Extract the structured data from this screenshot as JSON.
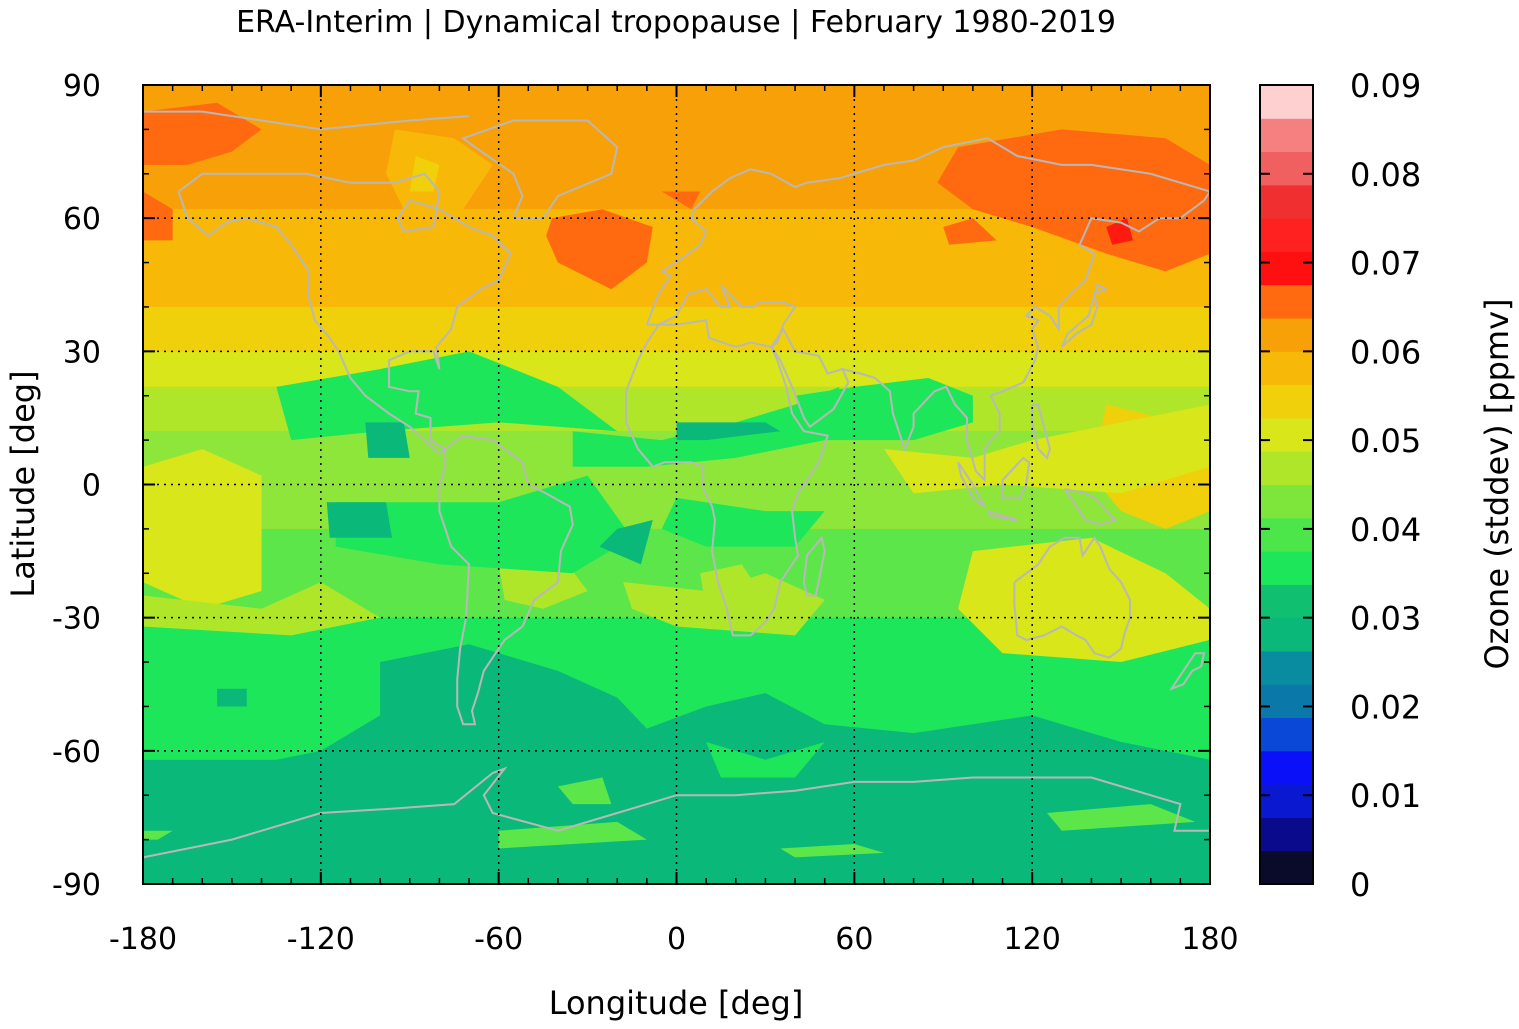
{
  "chart_data": {
    "type": "heatmap",
    "title": "ERA-Interim | Dynamical tropopause | February 1980-2019",
    "xlabel": "Longitude [deg]",
    "ylabel": "Latitude [deg]",
    "xlim": [
      -180,
      180
    ],
    "ylim": [
      -90,
      90
    ],
    "x_ticks": [
      "-180",
      "-120",
      "-60",
      "0",
      "60",
      "120",
      "180"
    ],
    "y_ticks": [
      "90",
      "60",
      "30",
      "0",
      "-30",
      "-60",
      "-90"
    ],
    "grid": true,
    "colorbar": {
      "label": "Ozone (stddev) [ppmv]",
      "range": [
        0,
        0.09
      ],
      "tick_labels": [
        "0.09",
        "0.08",
        "0.07",
        "0.06",
        "0.05",
        "0.04",
        "0.03",
        "0.02",
        "0.01",
        "0"
      ],
      "colors": [
        "#0a0a2a",
        "#0a0a8c",
        "#0a18d0",
        "#0a10f8",
        "#0a48d8",
        "#0a78a8",
        "#0a8ca0",
        "#0ab87a",
        "#10c070",
        "#1ee65a",
        "#4ce64a",
        "#7ee63a",
        "#b0e62a",
        "#d8e61a",
        "#f0d00a",
        "#f8b808",
        "#f8a008",
        "#ff6a10",
        "#ff1010",
        "#ff2020",
        "#f03030",
        "#f06060",
        "#f58080",
        "#ffd0d0"
      ]
    },
    "values_by_latitude": {
      "latitudes": [
        90,
        75,
        60,
        45,
        30,
        15,
        0,
        -15,
        -30,
        -45,
        -60,
        -75,
        -90
      ],
      "zonal_mean_ozone_stddev_ppmv": [
        0.062,
        0.06,
        0.063,
        0.058,
        0.052,
        0.042,
        0.038,
        0.035,
        0.033,
        0.029,
        0.027,
        0.025,
        0.024
      ]
    }
  }
}
